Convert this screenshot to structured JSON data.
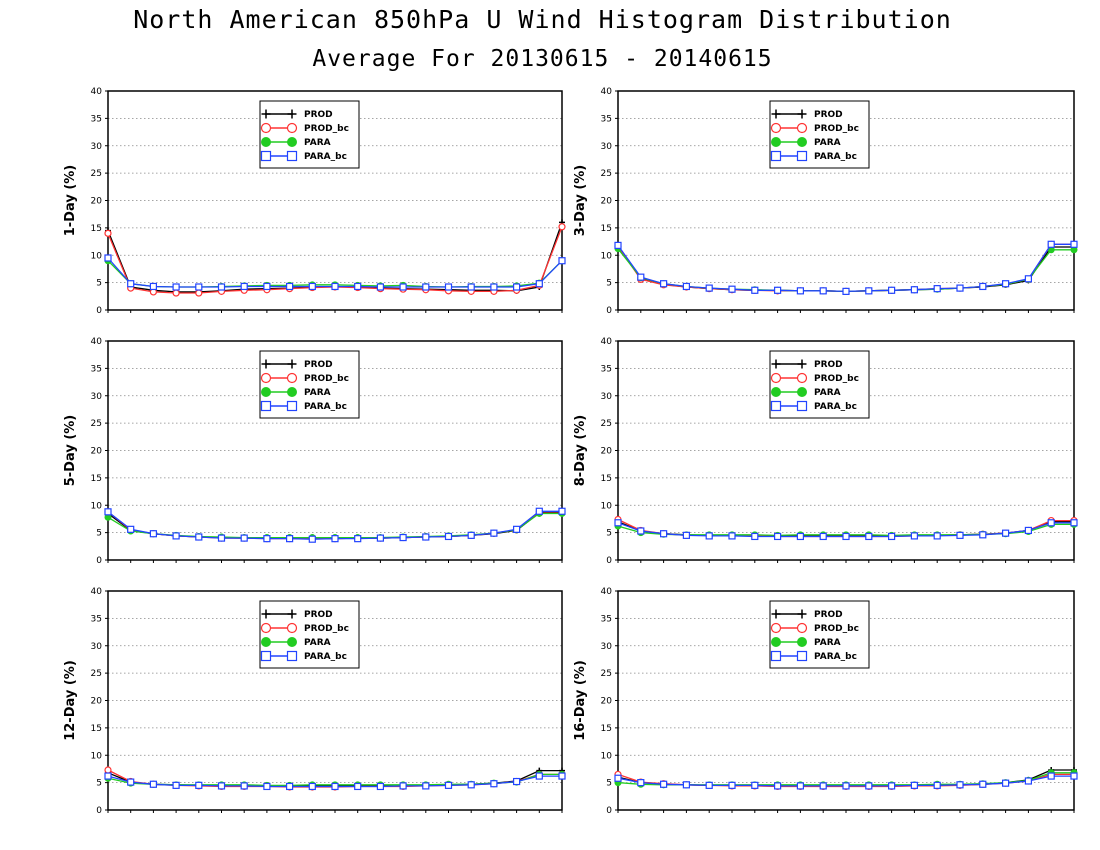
{
  "title": "North American 850hPa U Wind Histogram Distribution",
  "subtitle": "Average For 20130615 - 20140615",
  "series_colors": {
    "PROD": "#000000",
    "PROD_bc": "#ff3333",
    "PARA": "#22cc22",
    "PARA_bc": "#2244ff"
  },
  "series_markers": {
    "PROD": "plus",
    "PROD_bc": "open-circle",
    "PARA": "filled-circle",
    "PARA_bc": "open-square"
  },
  "chart_data": [
    {
      "type": "line",
      "ylabel": "1-Day (%)",
      "ylim": [
        0,
        40
      ],
      "yticks": [
        0,
        5,
        10,
        15,
        20,
        25,
        30,
        35,
        40
      ],
      "grid": true,
      "legend": "top-left",
      "x": [
        1,
        2,
        3,
        4,
        5,
        6,
        7,
        8,
        9,
        10,
        11,
        12,
        13,
        14,
        15,
        16,
        17,
        18,
        19,
        20,
        21
      ],
      "series": [
        {
          "name": "PROD",
          "values": [
            14.5,
            4.2,
            3.6,
            3.3,
            3.3,
            3.5,
            3.8,
            3.9,
            4.0,
            4.2,
            4.3,
            4.2,
            4.0,
            3.9,
            3.8,
            3.7,
            3.6,
            3.6,
            3.5,
            4.2,
            16.0
          ]
        },
        {
          "name": "PROD_bc",
          "values": [
            14.0,
            4.0,
            3.3,
            3.1,
            3.1,
            3.4,
            3.6,
            3.7,
            3.9,
            4.1,
            4.2,
            4.1,
            3.9,
            3.8,
            3.7,
            3.5,
            3.4,
            3.4,
            3.6,
            4.5,
            15.2
          ]
        },
        {
          "name": "PARA",
          "values": [
            9.0,
            4.8,
            4.3,
            4.2,
            4.2,
            4.3,
            4.4,
            4.5,
            4.5,
            4.6,
            4.6,
            4.5,
            4.4,
            4.5,
            4.3,
            4.2,
            4.3,
            4.3,
            4.4,
            4.9,
            9.0
          ]
        },
        {
          "name": "PARA_bc",
          "values": [
            9.5,
            4.8,
            4.3,
            4.2,
            4.2,
            4.2,
            4.3,
            4.3,
            4.3,
            4.3,
            4.3,
            4.3,
            4.2,
            4.2,
            4.2,
            4.2,
            4.2,
            4.2,
            4.2,
            4.8,
            9.0
          ]
        }
      ]
    },
    {
      "type": "line",
      "ylabel": "3-Day (%)",
      "ylim": [
        0,
        40
      ],
      "yticks": [
        0,
        5,
        10,
        15,
        20,
        25,
        30,
        35,
        40
      ],
      "grid": true,
      "legend": "top-left",
      "x": [
        1,
        2,
        3,
        4,
        5,
        6,
        7,
        8,
        9,
        10,
        11,
        12,
        13,
        14,
        15,
        16,
        17,
        18,
        19,
        20,
        21
      ],
      "series": [
        {
          "name": "PROD",
          "values": [
            11.5,
            5.8,
            4.7,
            4.2,
            3.9,
            3.7,
            3.6,
            3.6,
            3.5,
            3.5,
            3.4,
            3.5,
            3.6,
            3.7,
            3.8,
            4.0,
            4.2,
            4.6,
            5.4,
            11.5,
            11.5
          ]
        },
        {
          "name": "PROD_bc",
          "values": [
            11.6,
            5.6,
            4.6,
            4.2,
            3.9,
            3.7,
            3.6,
            3.5,
            3.5,
            3.5,
            3.4,
            3.5,
            3.6,
            3.7,
            3.9,
            4.0,
            4.3,
            4.7,
            5.6,
            12.0,
            12.0
          ]
        },
        {
          "name": "PARA",
          "values": [
            11.2,
            5.9,
            4.8,
            4.3,
            4.0,
            3.8,
            3.7,
            3.6,
            3.5,
            3.5,
            3.4,
            3.5,
            3.6,
            3.7,
            3.8,
            4.0,
            4.3,
            4.7,
            5.6,
            11.0,
            11.0
          ]
        },
        {
          "name": "PARA_bc",
          "values": [
            11.8,
            6.0,
            4.8,
            4.3,
            4.0,
            3.8,
            3.6,
            3.6,
            3.5,
            3.5,
            3.4,
            3.5,
            3.6,
            3.7,
            3.9,
            4.0,
            4.3,
            4.8,
            5.7,
            12.0,
            12.0
          ]
        }
      ]
    },
    {
      "type": "line",
      "ylabel": "5-Day (%)",
      "ylim": [
        0,
        40
      ],
      "yticks": [
        0,
        5,
        10,
        15,
        20,
        25,
        30,
        35,
        40
      ],
      "grid": true,
      "legend": "top-left",
      "x": [
        1,
        2,
        3,
        4,
        5,
        6,
        7,
        8,
        9,
        10,
        11,
        12,
        13,
        14,
        15,
        16,
        17,
        18,
        19,
        20,
        21
      ],
      "series": [
        {
          "name": "PROD",
          "values": [
            8.5,
            5.4,
            4.8,
            4.4,
            4.2,
            4.1,
            4.0,
            4.0,
            4.0,
            3.9,
            3.9,
            4.0,
            4.0,
            4.1,
            4.2,
            4.3,
            4.5,
            4.8,
            5.4,
            8.6,
            8.6
          ]
        },
        {
          "name": "PROD_bc",
          "values": [
            8.8,
            5.5,
            4.8,
            4.4,
            4.2,
            4.0,
            4.0,
            3.9,
            3.9,
            3.9,
            3.9,
            4.0,
            4.0,
            4.1,
            4.2,
            4.3,
            4.5,
            4.9,
            5.5,
            8.8,
            8.8
          ]
        },
        {
          "name": "PARA",
          "values": [
            7.8,
            5.3,
            4.8,
            4.5,
            4.3,
            4.2,
            4.1,
            4.1,
            4.1,
            4.1,
            4.1,
            4.1,
            4.1,
            4.2,
            4.3,
            4.4,
            4.6,
            4.9,
            5.5,
            8.5,
            8.5
          ]
        },
        {
          "name": "PARA_bc",
          "values": [
            8.8,
            5.6,
            4.8,
            4.4,
            4.2,
            4.0,
            4.0,
            3.9,
            3.9,
            3.8,
            3.9,
            3.9,
            4.0,
            4.1,
            4.2,
            4.3,
            4.5,
            4.9,
            5.6,
            8.9,
            8.9
          ]
        }
      ]
    },
    {
      "type": "line",
      "ylabel": "8-Day (%)",
      "ylim": [
        0,
        40
      ],
      "yticks": [
        0,
        5,
        10,
        15,
        20,
        25,
        30,
        35,
        40
      ],
      "grid": true,
      "legend": "top-left",
      "x": [
        1,
        2,
        3,
        4,
        5,
        6,
        7,
        8,
        9,
        10,
        11,
        12,
        13,
        14,
        15,
        16,
        17,
        18,
        19,
        20,
        21
      ],
      "series": [
        {
          "name": "PROD",
          "values": [
            7.0,
            5.3,
            4.8,
            4.6,
            4.5,
            4.5,
            4.4,
            4.4,
            4.4,
            4.4,
            4.5,
            4.4,
            4.4,
            4.5,
            4.5,
            4.6,
            4.7,
            4.9,
            5.4,
            7.0,
            7.0
          ]
        },
        {
          "name": "PROD_bc",
          "values": [
            7.4,
            5.4,
            4.8,
            4.5,
            4.5,
            4.4,
            4.4,
            4.3,
            4.3,
            4.3,
            4.3,
            4.3,
            4.3,
            4.4,
            4.5,
            4.6,
            4.7,
            4.9,
            5.4,
            7.2,
            7.2
          ]
        },
        {
          "name": "PARA",
          "values": [
            6.2,
            5.0,
            4.7,
            4.6,
            4.6,
            4.6,
            4.6,
            4.5,
            4.6,
            4.6,
            4.6,
            4.6,
            4.5,
            4.6,
            4.6,
            4.6,
            4.7,
            4.8,
            5.2,
            6.5,
            6.5
          ]
        },
        {
          "name": "PARA_bc",
          "values": [
            6.8,
            5.3,
            4.8,
            4.5,
            4.4,
            4.4,
            4.3,
            4.3,
            4.3,
            4.3,
            4.3,
            4.3,
            4.3,
            4.4,
            4.4,
            4.5,
            4.6,
            4.9,
            5.4,
            6.8,
            6.8
          ]
        }
      ]
    },
    {
      "type": "line",
      "ylabel": "12-Day (%)",
      "ylim": [
        0,
        40
      ],
      "yticks": [
        0,
        5,
        10,
        15,
        20,
        25,
        30,
        35,
        40
      ],
      "grid": true,
      "legend": "top-left",
      "x": [
        1,
        2,
        3,
        4,
        5,
        6,
        7,
        8,
        9,
        10,
        11,
        12,
        13,
        14,
        15,
        16,
        17,
        18,
        19,
        20,
        21
      ],
      "series": [
        {
          "name": "PROD",
          "values": [
            6.8,
            5.1,
            4.7,
            4.6,
            4.5,
            4.5,
            4.4,
            4.4,
            4.4,
            4.4,
            4.5,
            4.4,
            4.4,
            4.5,
            4.5,
            4.6,
            4.7,
            4.9,
            5.3,
            7.2,
            7.2
          ]
        },
        {
          "name": "PROD_bc",
          "values": [
            7.3,
            5.2,
            4.7,
            4.5,
            4.4,
            4.3,
            4.3,
            4.3,
            4.2,
            4.2,
            4.2,
            4.3,
            4.3,
            4.3,
            4.4,
            4.5,
            4.6,
            4.8,
            5.2,
            6.5,
            6.5
          ]
        },
        {
          "name": "PARA",
          "values": [
            5.8,
            4.9,
            4.7,
            4.6,
            4.6,
            4.6,
            4.6,
            4.5,
            4.5,
            4.6,
            4.6,
            4.6,
            4.6,
            4.6,
            4.6,
            4.7,
            4.7,
            4.9,
            5.1,
            6.5,
            6.5
          ]
        },
        {
          "name": "PARA_bc",
          "values": [
            6.2,
            5.1,
            4.7,
            4.5,
            4.5,
            4.4,
            4.4,
            4.3,
            4.3,
            4.3,
            4.3,
            4.3,
            4.3,
            4.4,
            4.4,
            4.5,
            4.6,
            4.8,
            5.2,
            6.2,
            6.2
          ]
        }
      ]
    },
    {
      "type": "line",
      "ylabel": "16-Day (%)",
      "ylim": [
        0,
        40
      ],
      "yticks": [
        0,
        5,
        10,
        15,
        20,
        25,
        30,
        35,
        40
      ],
      "grid": true,
      "legend": "top-left",
      "x": [
        1,
        2,
        3,
        4,
        5,
        6,
        7,
        8,
        9,
        10,
        11,
        12,
        13,
        14,
        15,
        16,
        17,
        18,
        19,
        20,
        21
      ],
      "series": [
        {
          "name": "PROD",
          "values": [
            6.0,
            5.0,
            4.7,
            4.6,
            4.5,
            4.5,
            4.5,
            4.5,
            4.5,
            4.5,
            4.5,
            4.5,
            4.5,
            4.5,
            4.5,
            4.6,
            4.7,
            5.0,
            5.5,
            7.3,
            7.3
          ]
        },
        {
          "name": "PROD_bc",
          "values": [
            6.5,
            5.1,
            4.8,
            4.6,
            4.5,
            4.4,
            4.4,
            4.3,
            4.3,
            4.3,
            4.3,
            4.3,
            4.3,
            4.4,
            4.4,
            4.5,
            4.7,
            4.9,
            5.3,
            6.5,
            6.5
          ]
        },
        {
          "name": "PARA",
          "values": [
            5.0,
            4.7,
            4.6,
            4.6,
            4.6,
            4.6,
            4.6,
            4.6,
            4.6,
            4.6,
            4.6,
            4.6,
            4.6,
            4.6,
            4.7,
            4.7,
            4.8,
            5.0,
            5.4,
            6.8,
            6.8
          ]
        },
        {
          "name": "PARA_bc",
          "values": [
            5.8,
            5.0,
            4.7,
            4.6,
            4.5,
            4.5,
            4.5,
            4.4,
            4.4,
            4.4,
            4.4,
            4.4,
            4.4,
            4.5,
            4.5,
            4.6,
            4.7,
            4.9,
            5.3,
            6.2,
            6.2
          ]
        }
      ]
    }
  ]
}
